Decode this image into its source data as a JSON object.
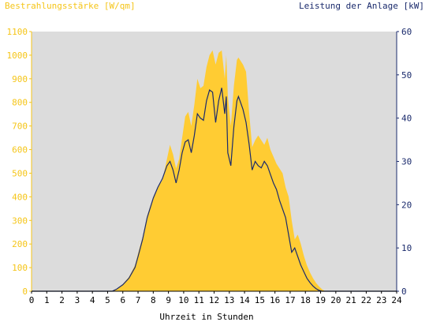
{
  "chart_data": {
    "type": "area",
    "title_left": "Bestrahlungsstärke [W/qm]",
    "title_right": "Leistung der Anlage [kW]",
    "xlabel": "Uhrzeit in Stunden",
    "xlim": [
      0,
      24
    ],
    "ylim_left": [
      0,
      1100
    ],
    "ylim_right": [
      0,
      60
    ],
    "x_ticks": [
      "0",
      "1",
      "2",
      "3",
      "4",
      "5",
      "6",
      "7",
      "8",
      "9",
      "10",
      "11",
      "12",
      "13",
      "14",
      "15",
      "16",
      "17",
      "18",
      "19",
      "20",
      "21",
      "22",
      "23",
      "24"
    ],
    "y_left_ticks": [
      "0",
      "100",
      "200",
      "300",
      "400",
      "500",
      "600",
      "700",
      "800",
      "900",
      "1000",
      "1100"
    ],
    "y_right_ticks": [
      "0",
      "10",
      "20",
      "30",
      "40",
      "50",
      "60"
    ],
    "colors": {
      "irradiance_fill": "#ffcc33",
      "power_line": "#1a2a6c",
      "plot_bg": "#dcdcdc",
      "left_axis": "#f5c518",
      "right_axis": "#1a2a6c"
    },
    "series": [
      {
        "axis": "left",
        "style": "area",
        "x": [
          0,
          5.3,
          5.6,
          6.0,
          6.4,
          6.8,
          7.0,
          7.3,
          7.6,
          8.0,
          8.3,
          8.6,
          8.9,
          9.1,
          9.3,
          9.5,
          9.7,
          9.9,
          10.1,
          10.3,
          10.5,
          10.7,
          10.9,
          11.1,
          11.3,
          11.5,
          11.7,
          11.9,
          12.1,
          12.3,
          12.5,
          12.7,
          12.8,
          12.9,
          13.1,
          13.3,
          13.5,
          13.6,
          13.7,
          13.9,
          14.1,
          14.3,
          14.5,
          14.7,
          14.9,
          15.1,
          15.3,
          15.5,
          15.7,
          15.9,
          16.1,
          16.3,
          16.5,
          16.7,
          16.9,
          17.1,
          17.3,
          17.5,
          17.7,
          17.9,
          18.1,
          18.3,
          18.5,
          18.7,
          18.9,
          19.1,
          19.3,
          19.5,
          19.7,
          20.0,
          24
        ],
        "y": [
          0,
          0,
          10,
          30,
          60,
          110,
          160,
          230,
          320,
          400,
          440,
          470,
          560,
          620,
          580,
          520,
          560,
          650,
          740,
          760,
          700,
          790,
          900,
          860,
          870,
          950,
          1000,
          1020,
          960,
          1010,
          1020,
          900,
          1000,
          830,
          700,
          870,
          980,
          990,
          980,
          960,
          930,
          760,
          610,
          640,
          660,
          640,
          620,
          650,
          600,
          570,
          540,
          520,
          500,
          440,
          400,
          300,
          220,
          240,
          200,
          150,
          110,
          80,
          55,
          35,
          20,
          8,
          0,
          0,
          0,
          0,
          0
        ]
      },
      {
        "axis": "right",
        "style": "line",
        "x": [
          0,
          5.3,
          5.6,
          6.0,
          6.4,
          6.8,
          7.0,
          7.3,
          7.6,
          8.0,
          8.3,
          8.6,
          8.9,
          9.1,
          9.3,
          9.5,
          9.7,
          9.9,
          10.1,
          10.3,
          10.5,
          10.7,
          10.9,
          11.1,
          11.3,
          11.5,
          11.7,
          11.9,
          12.1,
          12.3,
          12.5,
          12.7,
          12.8,
          12.9,
          13.1,
          13.3,
          13.5,
          13.6,
          13.7,
          13.9,
          14.1,
          14.3,
          14.5,
          14.7,
          14.9,
          15.1,
          15.3,
          15.5,
          15.7,
          15.9,
          16.1,
          16.3,
          16.5,
          16.7,
          16.9,
          17.1,
          17.3,
          17.5,
          17.7,
          17.9,
          18.1,
          18.3,
          18.5,
          18.7,
          18.9,
          19.1,
          19.3,
          19.5,
          19.7,
          20.0,
          24
        ],
        "y": [
          0,
          0,
          0.5,
          1.5,
          3,
          5.5,
          8,
          12,
          17,
          21.5,
          24,
          26,
          29,
          30,
          28,
          25,
          28,
          32,
          34.5,
          35,
          32,
          36,
          41,
          40,
          39.5,
          44,
          46.5,
          46,
          39,
          44,
          47,
          41,
          45,
          32,
          29,
          38,
          44,
          45,
          44,
          42,
          39,
          34,
          28,
          30,
          29,
          28.5,
          30,
          29,
          27,
          25,
          23.5,
          21,
          19,
          17,
          13,
          9,
          10,
          8,
          6,
          4.5,
          3,
          2,
          1.2,
          0.6,
          0.2,
          0,
          0,
          0,
          0,
          0,
          0
        ]
      }
    ]
  }
}
